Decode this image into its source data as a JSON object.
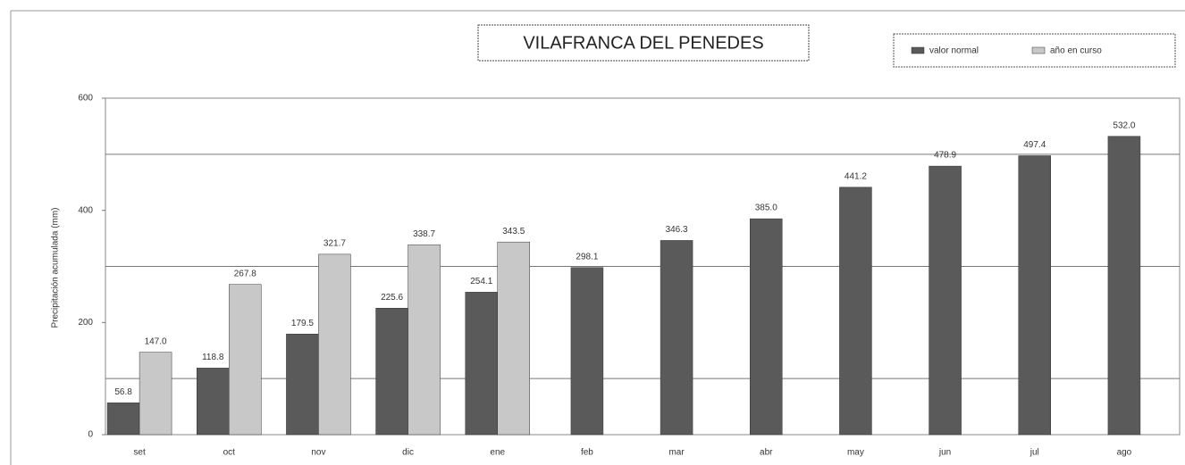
{
  "chart_data": {
    "type": "bar",
    "title": "VILAFRANCA DEL PENEDES",
    "y_label": "Precipitación acumulada  (mm)",
    "categories": [
      "set",
      "oct",
      "nov",
      "dic",
      "ene",
      "feb",
      "mar",
      "abr",
      "may",
      "jun",
      "jul",
      "ago"
    ],
    "series": [
      {
        "name": "valor normal",
        "color": "#5a5a5a",
        "values": [
          56.8,
          118.8,
          179.5,
          225.6,
          254.1,
          298.1,
          346.3,
          385.0,
          441.2,
          478.9,
          497.4,
          532.0
        ],
        "value_labels": [
          "56.8",
          "118.8",
          "179.5",
          "225.6",
          "254.1",
          "298.1",
          "346.3",
          "385.0",
          "441.2",
          "478.9",
          "497.4",
          "532.0"
        ]
      },
      {
        "name": "año en curso",
        "color": "#c8c8c8",
        "values": [
          147.0,
          267.8,
          321.7,
          338.7,
          343.5,
          null,
          null,
          null,
          null,
          null,
          null,
          null
        ],
        "value_labels": [
          "147.0",
          "267.8",
          "321.7",
          "338.7",
          "343.5",
          null,
          null,
          null,
          null,
          null,
          null,
          null
        ]
      }
    ],
    "ylim": [
      0,
      600
    ],
    "yticks": [
      0,
      200,
      400,
      600
    ],
    "grid_lines": [
      100,
      300,
      500
    ]
  }
}
